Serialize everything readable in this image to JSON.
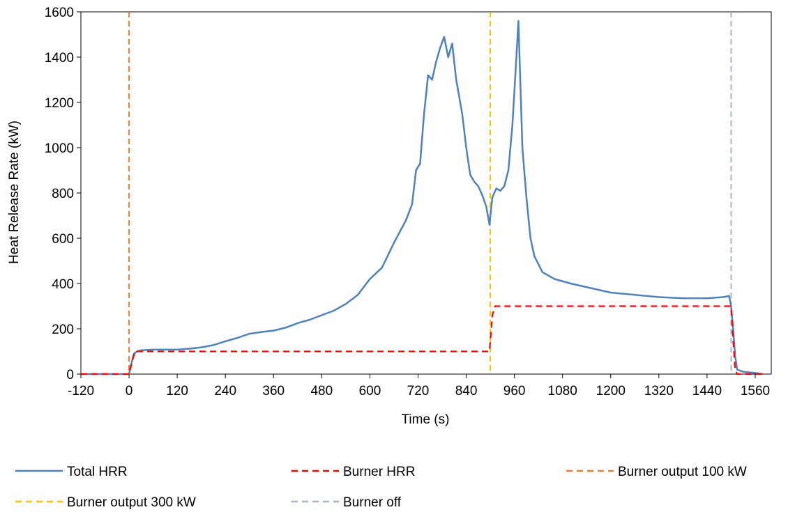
{
  "chart_data": {
    "type": "line",
    "title": "",
    "xlabel": "Time (s)",
    "ylabel": "Heat Release Rate (kW)",
    "xlim": [
      -120,
      1600
    ],
    "ylim": [
      0,
      1600
    ],
    "x_ticks": [
      -120,
      0,
      120,
      240,
      360,
      480,
      600,
      720,
      840,
      960,
      1080,
      1200,
      1320,
      1440,
      1560
    ],
    "y_ticks": [
      0,
      200,
      400,
      600,
      800,
      1000,
      1200,
      1400,
      1600
    ],
    "grid": false,
    "legend_position": "bottom",
    "series": [
      {
        "name": "Total HRR",
        "color": "#4F81BD",
        "style": "solid",
        "points": [
          [
            -120,
            0
          ],
          [
            0,
            0
          ],
          [
            5,
            40
          ],
          [
            12,
            90
          ],
          [
            20,
            100
          ],
          [
            30,
            105
          ],
          [
            60,
            108
          ],
          [
            90,
            108
          ],
          [
            120,
            108
          ],
          [
            150,
            112
          ],
          [
            180,
            118
          ],
          [
            210,
            128
          ],
          [
            240,
            145
          ],
          [
            270,
            160
          ],
          [
            300,
            178
          ],
          [
            330,
            186
          ],
          [
            360,
            192
          ],
          [
            390,
            205
          ],
          [
            420,
            225
          ],
          [
            450,
            240
          ],
          [
            480,
            260
          ],
          [
            510,
            280
          ],
          [
            540,
            310
          ],
          [
            570,
            350
          ],
          [
            600,
            420
          ],
          [
            630,
            470
          ],
          [
            660,
            580
          ],
          [
            690,
            680
          ],
          [
            705,
            750
          ],
          [
            715,
            900
          ],
          [
            725,
            930
          ],
          [
            735,
            1150
          ],
          [
            745,
            1320
          ],
          [
            755,
            1300
          ],
          [
            765,
            1380
          ],
          [
            775,
            1440
          ],
          [
            785,
            1490
          ],
          [
            795,
            1400
          ],
          [
            805,
            1460
          ],
          [
            815,
            1300
          ],
          [
            830,
            1150
          ],
          [
            840,
            1000
          ],
          [
            850,
            880
          ],
          [
            860,
            850
          ],
          [
            870,
            830
          ],
          [
            880,
            790
          ],
          [
            890,
            740
          ],
          [
            898,
            660
          ],
          [
            905,
            780
          ],
          [
            915,
            820
          ],
          [
            925,
            810
          ],
          [
            935,
            830
          ],
          [
            945,
            900
          ],
          [
            955,
            1100
          ],
          [
            965,
            1400
          ],
          [
            970,
            1560
          ],
          [
            980,
            1000
          ],
          [
            990,
            780
          ],
          [
            1000,
            600
          ],
          [
            1010,
            520
          ],
          [
            1030,
            450
          ],
          [
            1060,
            420
          ],
          [
            1100,
            400
          ],
          [
            1150,
            380
          ],
          [
            1200,
            360
          ],
          [
            1260,
            350
          ],
          [
            1320,
            340
          ],
          [
            1380,
            335
          ],
          [
            1440,
            335
          ],
          [
            1480,
            340
          ],
          [
            1495,
            345
          ],
          [
            1500,
            300
          ],
          [
            1505,
            200
          ],
          [
            1510,
            80
          ],
          [
            1515,
            20
          ],
          [
            1530,
            10
          ],
          [
            1560,
            5
          ],
          [
            1580,
            0
          ]
        ]
      },
      {
        "name": "Burner HRR",
        "color": "#FF0000",
        "style": "dashed",
        "points": [
          [
            -120,
            0
          ],
          [
            0,
            0
          ],
          [
            8,
            60
          ],
          [
            15,
            100
          ],
          [
            898,
            100
          ],
          [
            905,
            260
          ],
          [
            912,
            300
          ],
          [
            1500,
            300
          ],
          [
            1505,
            150
          ],
          [
            1510,
            20
          ],
          [
            1515,
            0
          ],
          [
            1580,
            0
          ]
        ]
      },
      {
        "name": "Burner output 100 kW",
        "color": "#ED7D31",
        "style": "dashed",
        "x": 0
      },
      {
        "name": "Burner output 300 kW",
        "color": "#FFC000",
        "style": "dashed",
        "x": 900
      },
      {
        "name": "Burner off",
        "color": "#A5B4CE",
        "style": "dashed",
        "x": 1500
      }
    ]
  }
}
